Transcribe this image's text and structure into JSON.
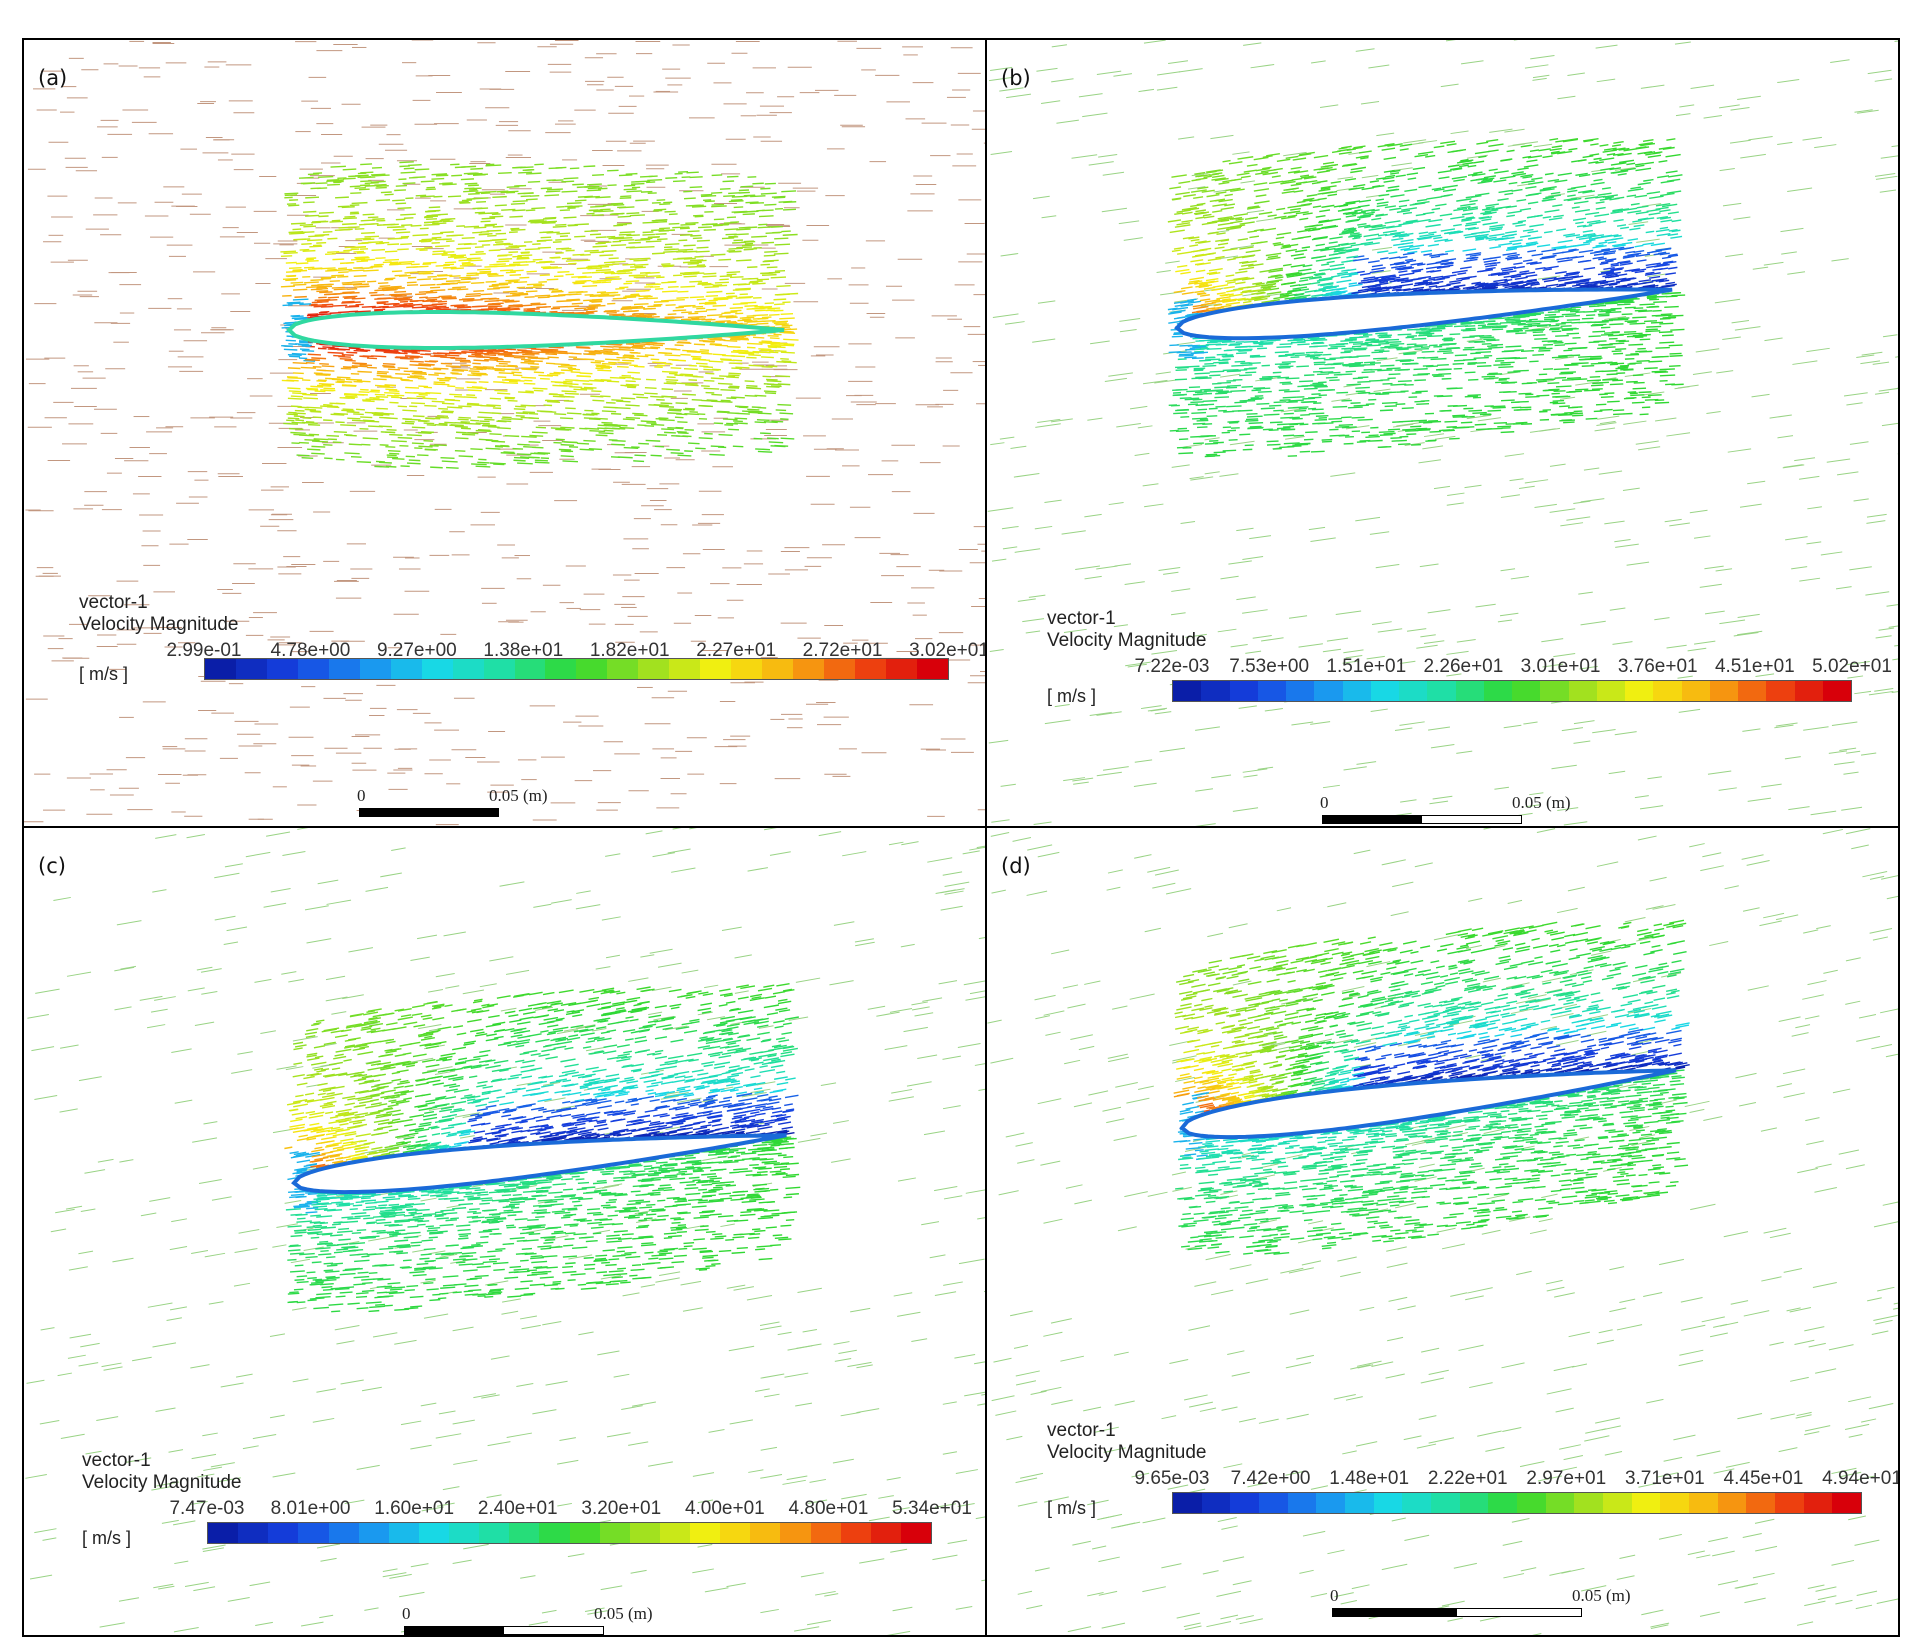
{
  "colors": {
    "stops": [
      "#0a1ea8",
      "#1540e0",
      "#1a8cf0",
      "#18d8e8",
      "#20e0a0",
      "#30d830",
      "#9ae020",
      "#f4f010",
      "#f8b010",
      "#f04a10",
      "#d8000a"
    ],
    "bg_arrow_a": "#b8866a",
    "bg_arrow_bcd": "#88cc70"
  },
  "panels": [
    {
      "id": "a",
      "tag": "(a)",
      "legend_title": "vector-1",
      "legend_variable": "Velocity Magnitude",
      "units": "[ m/s ]",
      "ticks": [
        "2.99e-01",
        "4.78e+00",
        "9.27e+00",
        "1.38e+01",
        "1.82e+01",
        "2.27e+01",
        "2.72e+01",
        "3.02e+01"
      ],
      "scale_zero": "0",
      "scale_distance": "0.05 (m)",
      "angle_of_attack_deg": 0,
      "upper_peak": 1.0,
      "lower_peak": 1.0,
      "suction_level": 0.1
    },
    {
      "id": "b",
      "tag": "(b)",
      "legend_title": "vector-1",
      "legend_variable": "Velocity Magnitude",
      "units": "[ m/s ]",
      "ticks": [
        "7.22e-03",
        "7.53e+00",
        "1.51e+01",
        "2.26e+01",
        "3.01e+01",
        "3.76e+01",
        "4.51e+01",
        "5.02e+01"
      ],
      "scale_zero": "0",
      "scale_distance": "0.05 (m)",
      "angle_of_attack_deg": 8,
      "upper_peak": 0.95,
      "lower_peak": 0.35,
      "suction_level": 0.02
    },
    {
      "id": "c",
      "tag": "(c)",
      "legend_title": "vector-1",
      "legend_variable": "Velocity Magnitude",
      "units": "[ m/s ]",
      "ticks": [
        "7.47e-03",
        "8.01e+00",
        "1.60e+01",
        "2.40e+01",
        "3.20e+01",
        "4.00e+01",
        "4.80e+01",
        "5.34e+01"
      ],
      "scale_zero": "0",
      "scale_distance": "0.05 (m)",
      "angle_of_attack_deg": 10,
      "upper_peak": 0.97,
      "lower_peak": 0.35,
      "suction_level": 0.0
    },
    {
      "id": "d",
      "tag": "(d)",
      "legend_title": "vector-1",
      "legend_variable": "Velocity Magnitude",
      "units": "[ m/s ]",
      "ticks": [
        "9.65e-03",
        "7.42e+00",
        "1.48e+01",
        "2.22e+01",
        "2.97e+01",
        "3.71e+01",
        "4.45e+01",
        "4.94e+01"
      ],
      "scale_zero": "0",
      "scale_distance": "0.05 (m)",
      "angle_of_attack_deg": 12,
      "upper_peak": 1.0,
      "lower_peak": 0.32,
      "suction_level": 0.0
    }
  ]
}
